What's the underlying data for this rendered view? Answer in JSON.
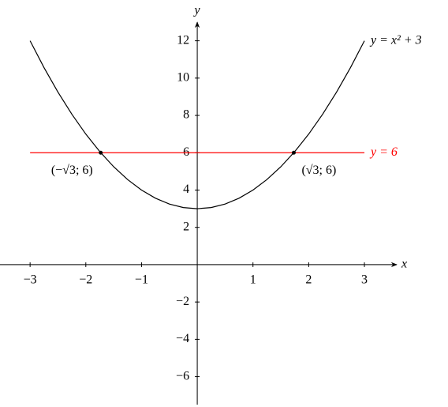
{
  "chart_data": {
    "type": "line",
    "xlabel": "x",
    "ylabel": "y",
    "xlim": [
      -3.54,
      3.58
    ],
    "ylim": [
      -7.5,
      13.0
    ],
    "xticks": [
      {
        "value": -3,
        "label": "−3"
      },
      {
        "value": -2,
        "label": "−2"
      },
      {
        "value": -1,
        "label": "−1"
      },
      1,
      2,
      3
    ],
    "yticks": [
      {
        "value": -6,
        "label": "−6"
      },
      {
        "value": -4,
        "label": "−4"
      },
      {
        "value": -2,
        "label": "−2"
      },
      2,
      4,
      6,
      8,
      10,
      12
    ],
    "series": [
      {
        "name": "y = x² + 3",
        "color": "#000000",
        "x": [
          -3,
          -2.75,
          -2.5,
          -2.25,
          -2,
          -1.75,
          -1.5,
          -1.25,
          -1,
          -0.75,
          -0.5,
          -0.25,
          0,
          0.25,
          0.5,
          0.75,
          1,
          1.25,
          1.5,
          1.75,
          2,
          2.25,
          2.5,
          2.75,
          3
        ],
        "y": [
          12,
          10.5625,
          9.25,
          8.0625,
          7,
          6.0625,
          5.25,
          4.5625,
          4,
          3.5625,
          3.25,
          3.0625,
          3,
          3.0625,
          3.25,
          3.5625,
          4,
          4.5625,
          5.25,
          6.0625,
          7,
          8.0625,
          9.25,
          10.5625,
          12
        ]
      },
      {
        "name": "y = 6",
        "color": "#ff0000",
        "x": [
          -3,
          3
        ],
        "y": [
          6,
          6
        ]
      }
    ],
    "points": [
      {
        "x": -1.732,
        "y": 6,
        "label": "(−√3; 6)",
        "side": "left"
      },
      {
        "x": 1.732,
        "y": 6,
        "label": "(√3; 6)",
        "side": "right"
      }
    ]
  }
}
